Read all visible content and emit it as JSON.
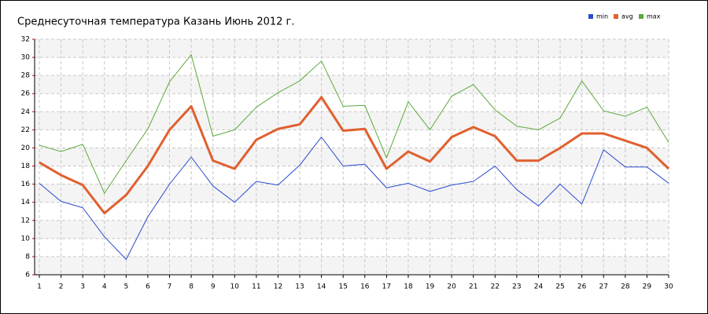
{
  "chart_data": {
    "type": "line",
    "title": "Среднесуточная температура Казань  Июнь 2012 г.",
    "x": [
      1,
      2,
      3,
      4,
      5,
      6,
      7,
      8,
      9,
      10,
      11,
      12,
      13,
      14,
      15,
      16,
      17,
      18,
      19,
      20,
      21,
      22,
      23,
      24,
      25,
      26,
      27,
      28,
      29,
      30
    ],
    "series": [
      {
        "name": "min",
        "color": "#2a4bd0",
        "values": [
          16.1,
          14.1,
          13.4,
          10.2,
          7.7,
          12.4,
          16.0,
          19.0,
          15.8,
          14.0,
          16.3,
          15.9,
          18.1,
          21.2,
          18.0,
          18.2,
          15.6,
          16.1,
          15.2,
          15.9,
          16.3,
          18.0,
          15.4,
          13.6,
          16.0,
          13.8,
          19.8,
          17.9,
          17.9,
          16.1
        ]
      },
      {
        "name": "avg",
        "color": "#e0602e",
        "values": [
          18.4,
          17.0,
          15.9,
          12.8,
          14.8,
          18.0,
          22.0,
          24.6,
          18.6,
          17.7,
          20.9,
          22.1,
          22.6,
          25.6,
          21.9,
          22.1,
          17.7,
          19.6,
          18.5,
          21.2,
          22.3,
          21.3,
          18.6,
          18.6,
          20.0,
          21.6,
          21.6,
          20.8,
          20.0,
          17.7
        ]
      },
      {
        "name": "max",
        "color": "#5aaa3a",
        "values": [
          20.3,
          19.6,
          20.4,
          15.0,
          18.6,
          22.1,
          27.3,
          30.3,
          21.3,
          22.0,
          24.5,
          26.1,
          27.4,
          29.6,
          24.6,
          24.7,
          18.9,
          25.1,
          22.0,
          25.7,
          27.0,
          24.2,
          22.4,
          22.0,
          23.3,
          27.4,
          24.1,
          23.5,
          24.5,
          20.6
        ]
      }
    ],
    "xlim": [
      1,
      30
    ],
    "xticks": [
      1,
      2,
      3,
      4,
      5,
      6,
      7,
      8,
      9,
      10,
      11,
      12,
      13,
      14,
      15,
      16,
      17,
      18,
      19,
      20,
      21,
      22,
      23,
      24,
      25,
      26,
      27,
      28,
      29,
      30
    ],
    "ylim": [
      6,
      32
    ],
    "yticks": [
      6,
      8,
      10,
      12,
      14,
      16,
      18,
      20,
      22,
      24,
      26,
      28,
      30,
      32
    ],
    "grid": true,
    "legend": "top-right"
  }
}
